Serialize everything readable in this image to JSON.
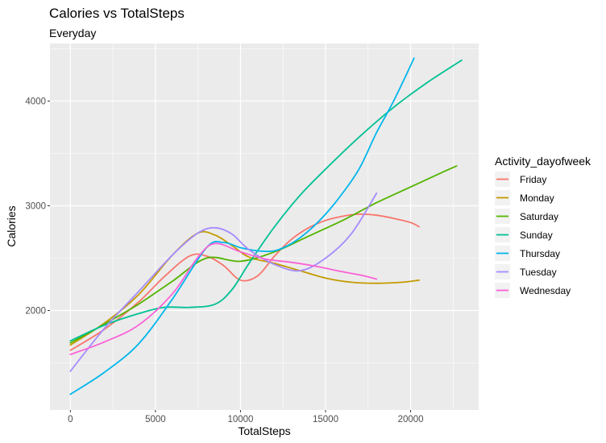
{
  "chart_data": {
    "type": "line",
    "title": "Calories vs TotalSteps",
    "subtitle": "Everyday",
    "xlabel": "TotalSteps",
    "ylabel": "Calories",
    "xlim": [
      -1200,
      24000
    ],
    "ylim": [
      1050,
      4550
    ],
    "x_ticks": [
      0,
      5000,
      10000,
      15000,
      20000
    ],
    "x_tick_labels": [
      "0",
      "5000",
      "10000",
      "15000",
      "20000"
    ],
    "y_ticks": [
      2000,
      3000,
      4000
    ],
    "y_tick_labels": [
      "2000",
      "3000",
      "4000"
    ],
    "grid": true,
    "legend": {
      "title": "Activity_dayofweek",
      "position": "right"
    },
    "series": [
      {
        "name": "Friday",
        "color": "#F8766D",
        "x": [
          0,
          2000,
          4000,
          5500,
          7000,
          8000,
          9000,
          10000,
          11000,
          12000,
          13000,
          14000,
          15000,
          16000,
          17000,
          18000,
          19000,
          20000,
          20500
        ],
        "y": [
          1620,
          1820,
          2080,
          2320,
          2520,
          2520,
          2430,
          2290,
          2330,
          2520,
          2680,
          2790,
          2860,
          2900,
          2920,
          2910,
          2880,
          2840,
          2800
        ]
      },
      {
        "name": "Monday",
        "color": "#C49A00",
        "x": [
          0,
          2000,
          4000,
          6000,
          7500,
          8500,
          9500,
          10500,
          12000,
          13500,
          15000,
          16500,
          18000,
          19500,
          20500
        ],
        "y": [
          1670,
          1880,
          2150,
          2530,
          2740,
          2720,
          2620,
          2510,
          2450,
          2380,
          2310,
          2270,
          2260,
          2270,
          2290
        ]
      },
      {
        "name": "Saturday",
        "color": "#53B400",
        "x": [
          0,
          2000,
          4000,
          6000,
          8000,
          10000,
          12000,
          14000,
          16000,
          18000,
          20000,
          22000,
          22700
        ],
        "y": [
          1690,
          1870,
          2060,
          2280,
          2500,
          2470,
          2560,
          2710,
          2860,
          3030,
          3180,
          3330,
          3380
        ]
      },
      {
        "name": "Sunday",
        "color": "#00C094",
        "x": [
          0,
          2000,
          4000,
          5500,
          7000,
          8500,
          9500,
          10500,
          12000,
          13500,
          15000,
          17000,
          19000,
          21000,
          23000
        ],
        "y": [
          1710,
          1860,
          1970,
          2030,
          2030,
          2060,
          2200,
          2450,
          2800,
          3100,
          3350,
          3660,
          3940,
          4180,
          4390
        ]
      },
      {
        "name": "Thursday",
        "color": "#00B6EB",
        "x": [
          0,
          2000,
          4000,
          6000,
          8000,
          9000,
          10000,
          11000,
          12000,
          13000,
          14000,
          15000,
          16000,
          17000,
          18000,
          19000,
          20200
        ],
        "y": [
          1200,
          1410,
          1680,
          2110,
          2600,
          2650,
          2600,
          2570,
          2570,
          2640,
          2760,
          2920,
          3120,
          3360,
          3700,
          4000,
          4410
        ]
      },
      {
        "name": "Tuesday",
        "color": "#A58AFF",
        "x": [
          0,
          2000,
          4000,
          6000,
          7500,
          8500,
          9500,
          10500,
          12000,
          13500,
          15000,
          16500,
          18000
        ],
        "y": [
          1420,
          1830,
          2180,
          2530,
          2740,
          2790,
          2730,
          2580,
          2440,
          2380,
          2500,
          2730,
          3120
        ]
      },
      {
        "name": "Wednesday",
        "color": "#FB61D7",
        "x": [
          0,
          2000,
          4000,
          6000,
          7500,
          8500,
          10000,
          11500,
          13000,
          14500,
          16000,
          17000,
          18000
        ],
        "y": [
          1580,
          1700,
          1860,
          2160,
          2510,
          2640,
          2560,
          2490,
          2460,
          2420,
          2370,
          2340,
          2300
        ]
      }
    ]
  }
}
